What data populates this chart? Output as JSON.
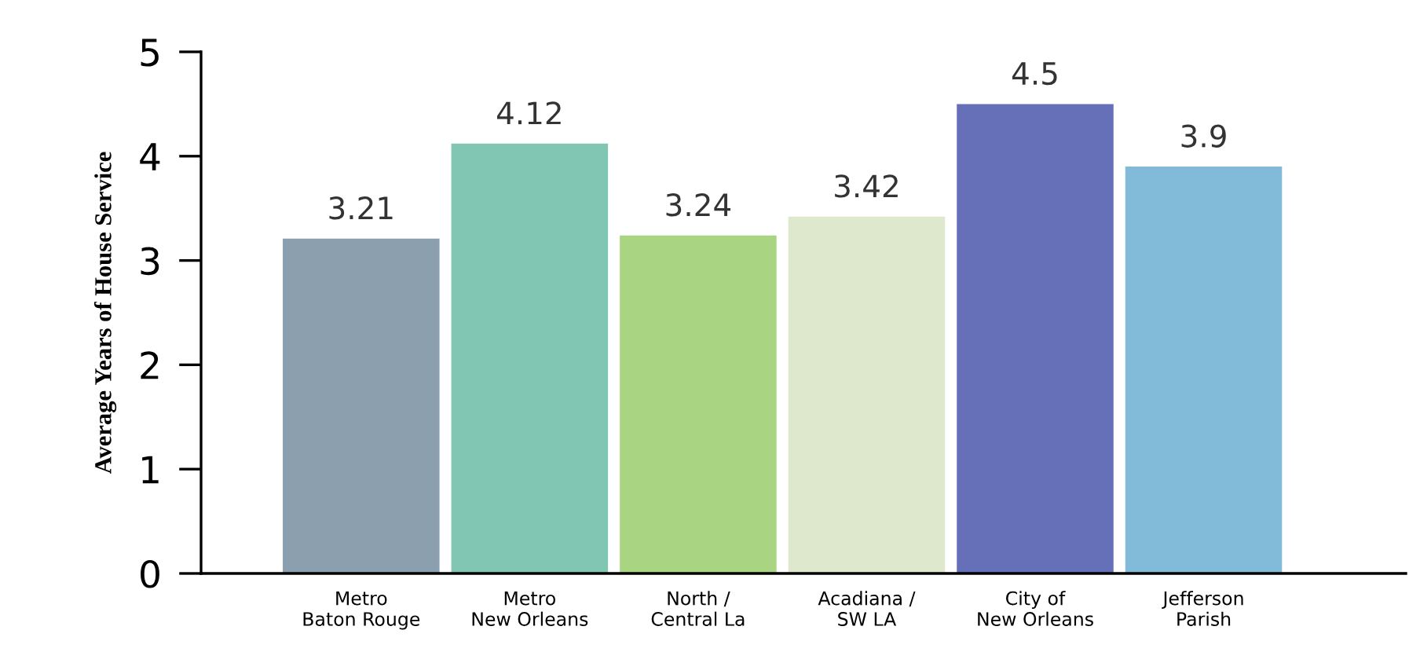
{
  "chart_data": {
    "type": "bar",
    "ylabel": "Average Years of House Service",
    "categories": [
      "Metro\nBaton Rouge",
      "Metro\nNew Orleans",
      "North /\nCentral La",
      "Acadiana /\nSW LA",
      "City of\nNew Orleans",
      "Jefferson\nParish"
    ],
    "values": [
      3.21,
      4.12,
      3.24,
      3.42,
      4.5,
      3.9
    ],
    "colors": [
      "#8c9fae",
      "#80c6b2",
      "#a9d482",
      "#dde8cc",
      "#6570b8",
      "#82bad9"
    ],
    "ylim": [
      0,
      5
    ],
    "yticks": [
      0,
      1,
      2,
      3,
      4,
      5
    ],
    "grid": false,
    "data_labels": true
  }
}
